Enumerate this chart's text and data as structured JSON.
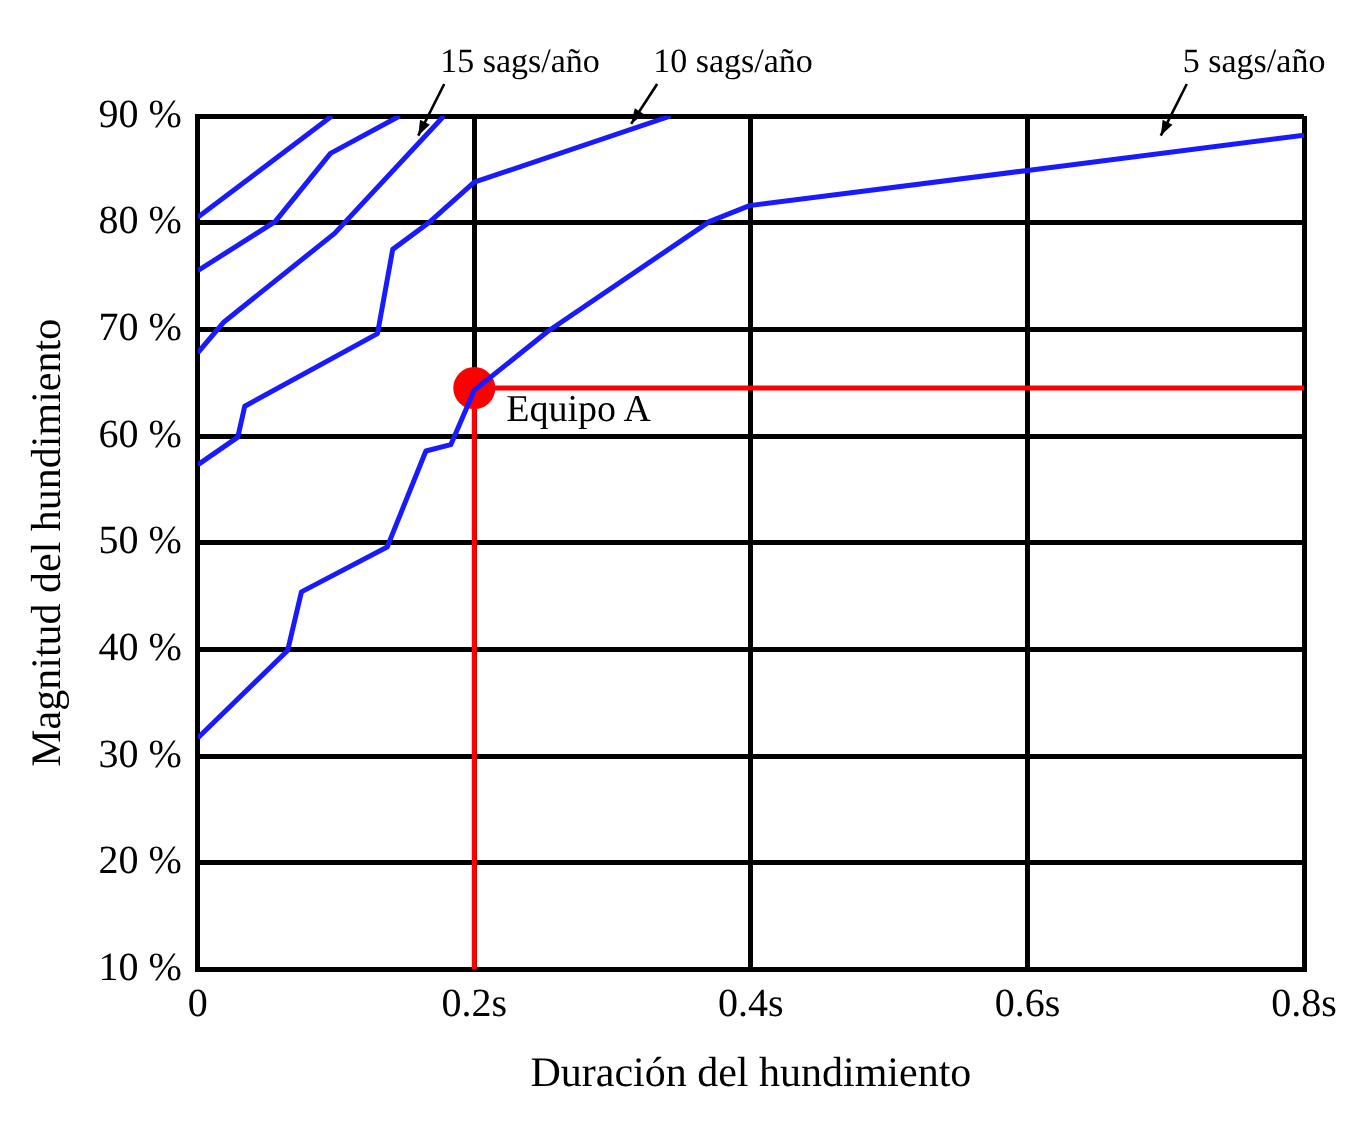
{
  "chart_data": {
    "type": "line",
    "xlabel": "Duración del hundimiento",
    "ylabel": "Magnitud del hundimiento",
    "xlim": [
      0,
      0.8
    ],
    "xticks": [
      0,
      {
        "value": 0.2,
        "label": "0.2s"
      },
      {
        "value": 0.4,
        "label": "0.4s"
      },
      {
        "value": 0.6,
        "label": "0.6s"
      },
      {
        "value": 0.8,
        "label": "0.8s"
      }
    ],
    "ylim": [
      10,
      90
    ],
    "yticks": [
      {
        "value": 10,
        "label": "10 %"
      },
      {
        "value": 20,
        "label": "20 %"
      },
      {
        "value": 30,
        "label": "30 %"
      },
      {
        "value": 40,
        "label": "40 %"
      },
      {
        "value": 50,
        "label": "50 %"
      },
      {
        "value": 60,
        "label": "60 %"
      },
      {
        "value": 70,
        "label": "70 %"
      },
      {
        "value": 80,
        "label": "80 %"
      },
      {
        "value": 90,
        "label": "90 %"
      }
    ],
    "grid": true,
    "legend": false,
    "marker": "none",
    "line_style": "solid",
    "series": [
      {
        "color": "#1a1aff",
        "x": [
          0,
          0.097
        ],
        "values": [
          80.5,
          90
        ]
      },
      {
        "color": "#1a1aff",
        "x": [
          0,
          0.056,
          0.096,
          0.146
        ],
        "values": [
          75.5,
          80.1,
          86.5,
          90
        ]
      },
      {
        "color": "#1a1aff",
        "x": [
          0,
          0.019,
          0.099,
          0.178
        ],
        "values": [
          67.8,
          70.7,
          79,
          90
        ]
      },
      {
        "color": "#1a1aff",
        "x": [
          0,
          0.029,
          0.034,
          0.13,
          0.141,
          0.168,
          0.2,
          0.342
        ],
        "values": [
          57.3,
          59.9,
          62.8,
          69.6,
          77.5,
          80.1,
          83.8,
          90
        ]
      },
      {
        "color": "#1a1aff",
        "x": [
          0,
          0.065,
          0.075,
          0.137,
          0.165,
          0.183,
          0.2,
          0.253,
          0.37,
          0.399,
          0.6,
          0.8
        ],
        "values": [
          31.7,
          39.9,
          45.4,
          49.6,
          58.6,
          59.2,
          64.3,
          69.8,
          80.1,
          81.6,
          84.9,
          88.2
        ]
      },
      {
        "color": "#ff0000",
        "x": [
          0.2,
          0.2,
          0.8
        ],
        "values": [
          10,
          64.5,
          64.5
        ]
      },
      {
        "type": "scatter",
        "marker": "circle",
        "color": "#ff0000",
        "x": [
          0.2
        ],
        "values": [
          64.5
        ]
      }
    ],
    "annotations": [
      {
        "text": "15 sags/año",
        "x": 0.158,
        "y": 87.6
      },
      {
        "text": "10 sags/año",
        "x": 0.312,
        "y": 88.7
      },
      {
        "text": "5 sags/año",
        "x": 0.695,
        "y": 87.6
      },
      {
        "text": "Equipo A",
        "x": 0.2,
        "y": 64.5
      }
    ]
  }
}
